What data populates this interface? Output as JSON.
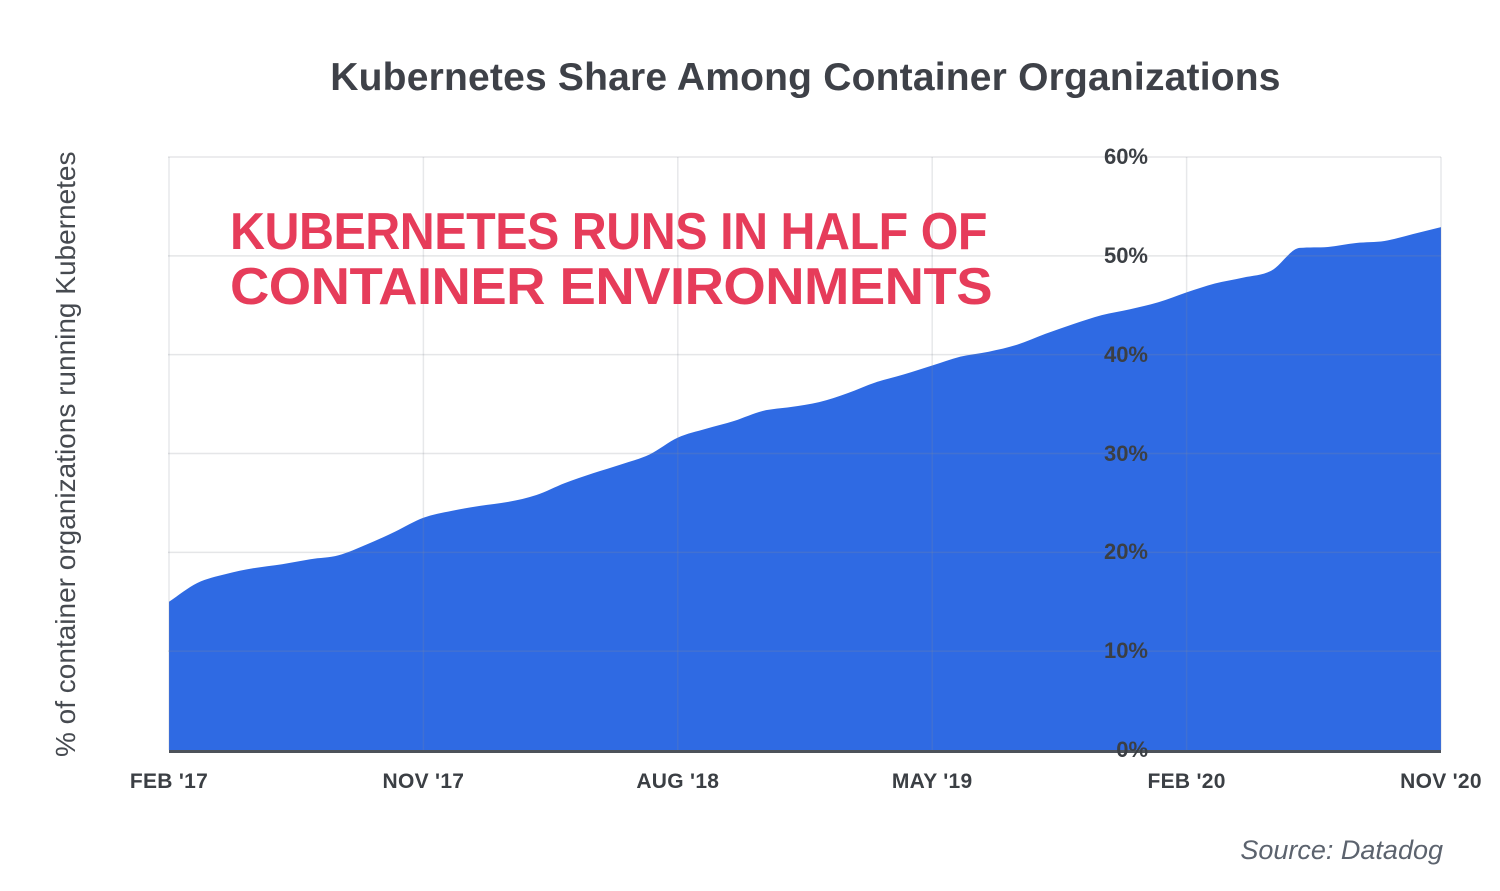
{
  "title": "Kubernetes Share Among Container Organizations",
  "annotation": {
    "line1": "KUBERNETES RUNS IN HALF OF",
    "line2": "CONTAINER ENVIRONMENTS",
    "color": "#e63c5a"
  },
  "source": "Source: Datadog",
  "y_axis": {
    "title": "% of container organizations running Kubernetes",
    "tick_labels": [
      "0%",
      "10%",
      "20%",
      "30%",
      "40%",
      "50%",
      "60%"
    ]
  },
  "x_axis": {
    "tick_labels": [
      "FEB '17",
      "NOV '17",
      "AUG '18",
      "MAY '19",
      "FEB '20",
      "NOV '20"
    ]
  },
  "colors": {
    "background": "#ffffff",
    "area": "#2f6ae3",
    "accent_red": "#e63c5a",
    "title_text": "#3e4148",
    "axis_text": "#3b3f44",
    "y_axis_title_text": "#464a50",
    "gridline": "#e8eaed",
    "axis_line": "#4d525a",
    "source_text": "#5c636e"
  },
  "chart_data": {
    "type": "area",
    "title": "Kubernetes Share Among Container Organizations",
    "xlabel": "",
    "ylabel": "% of container organizations running Kubernetes",
    "ylim": [
      0,
      60
    ],
    "grid": true,
    "legend": false,
    "annotation": "KUBERNETES RUNS IN HALF OF CONTAINER ENVIRONMENTS",
    "source": "Source: Datadog",
    "y_ticks_percent": [
      0,
      10,
      20,
      30,
      40,
      50,
      60
    ],
    "x_tick_labels": [
      "FEB '17",
      "NOV '17",
      "AUG '18",
      "MAY '19",
      "FEB '20",
      "NOV '20"
    ],
    "x_tick_month_index": [
      0,
      9,
      18,
      27,
      36,
      45
    ],
    "months": [
      "2017-02",
      "2017-03",
      "2017-04",
      "2017-05",
      "2017-06",
      "2017-07",
      "2017-08",
      "2017-09",
      "2017-10",
      "2017-11",
      "2017-12",
      "2018-01",
      "2018-02",
      "2018-03",
      "2018-04",
      "2018-05",
      "2018-06",
      "2018-07",
      "2018-08",
      "2018-09",
      "2018-10",
      "2018-11",
      "2018-12",
      "2019-01",
      "2019-02",
      "2019-03",
      "2019-04",
      "2019-05",
      "2019-06",
      "2019-07",
      "2019-08",
      "2019-09",
      "2019-10",
      "2019-11",
      "2019-12",
      "2020-01",
      "2020-02",
      "2020-03",
      "2020-04",
      "2020-05",
      "2020-06",
      "2020-07",
      "2020-08",
      "2020-09",
      "2020-10",
      "2020-11"
    ],
    "values_percent": [
      15.0,
      16.9,
      17.8,
      18.4,
      18.8,
      19.3,
      19.7,
      20.8,
      22.1,
      23.5,
      24.2,
      24.7,
      25.1,
      25.8,
      27.0,
      28.0,
      28.9,
      29.9,
      31.6,
      32.5,
      33.3,
      34.3,
      34.7,
      35.2,
      36.1,
      37.2,
      38.0,
      38.9,
      39.8,
      40.3,
      41.0,
      42.1,
      43.1,
      44.0,
      44.6,
      45.3,
      46.3,
      47.2,
      47.8,
      48.5,
      50.8,
      50.9,
      51.3,
      51.5,
      52.2,
      52.9
    ]
  }
}
